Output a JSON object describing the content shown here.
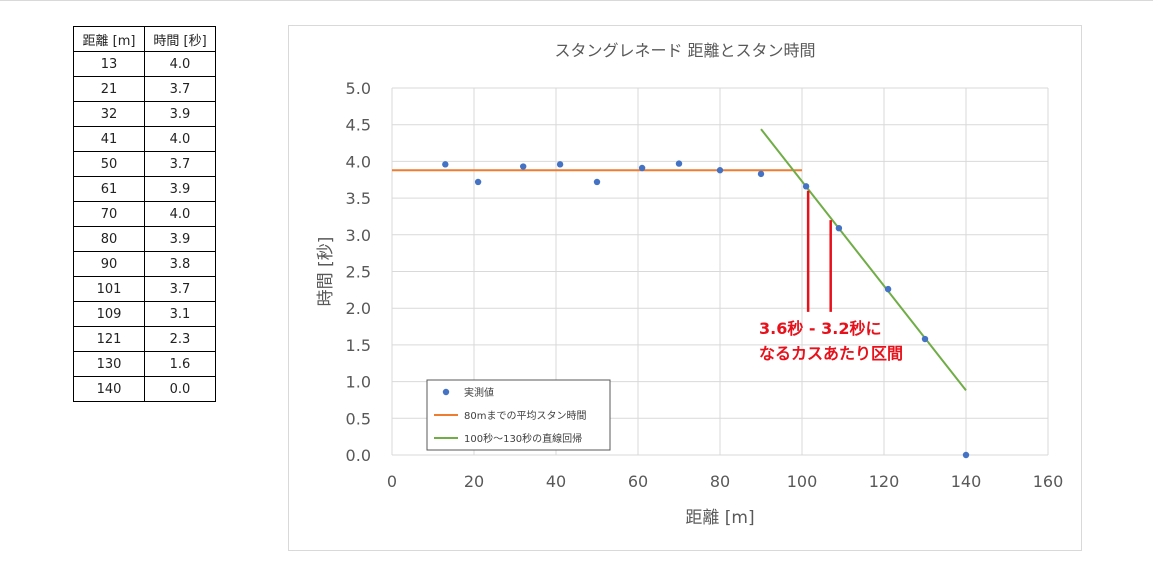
{
  "table": {
    "headers": [
      "距離 [m]",
      "時間 [秒]"
    ],
    "rows": [
      [
        "13",
        "4.0"
      ],
      [
        "21",
        "3.7"
      ],
      [
        "32",
        "3.9"
      ],
      [
        "41",
        "4.0"
      ],
      [
        "50",
        "3.7"
      ],
      [
        "61",
        "3.9"
      ],
      [
        "70",
        "4.0"
      ],
      [
        "80",
        "3.9"
      ],
      [
        "90",
        "3.8"
      ],
      [
        "101",
        "3.7"
      ],
      [
        "109",
        "3.1"
      ],
      [
        "121",
        "2.3"
      ],
      [
        "130",
        "1.6"
      ],
      [
        "140",
        "0.0"
      ]
    ]
  },
  "chart_data": {
    "type": "scatter",
    "title": "スタングレネード 距離とスタン時間",
    "xlabel": "距離 [m]",
    "ylabel": "時間 [秒]",
    "xlim": [
      0,
      160
    ],
    "ylim": [
      0,
      5.0
    ],
    "x_ticks": [
      "0",
      "20",
      "40",
      "60",
      "80",
      "100",
      "120",
      "140",
      "160"
    ],
    "y_ticks": [
      "0.0",
      "0.5",
      "1.0",
      "1.5",
      "2.0",
      "2.5",
      "3.0",
      "3.5",
      "4.0",
      "4.5",
      "5.0"
    ],
    "grid": true,
    "legend_position": "bottom-left",
    "series": [
      {
        "name": "実測値",
        "kind": "scatter",
        "color": "#4472c4",
        "points": [
          [
            13,
            3.96
          ],
          [
            21,
            3.72
          ],
          [
            32,
            3.93
          ],
          [
            41,
            3.96
          ],
          [
            50,
            3.72
          ],
          [
            61,
            3.91
          ],
          [
            70,
            3.97
          ],
          [
            80,
            3.88
          ],
          [
            90,
            3.83
          ],
          [
            101,
            3.66
          ],
          [
            109,
            3.09
          ],
          [
            121,
            2.26
          ],
          [
            130,
            1.58
          ],
          [
            140,
            0.0
          ]
        ]
      },
      {
        "name": "80mまでの平均スタン時間",
        "kind": "line",
        "color": "#ed7d31",
        "points": [
          [
            0,
            3.88
          ],
          [
            100,
            3.88
          ]
        ]
      },
      {
        "name": "100秒～130秒の直線回帰",
        "kind": "line",
        "color": "#70ad47",
        "points": [
          [
            90,
            4.44
          ],
          [
            140,
            0.88
          ]
        ]
      }
    ],
    "annotation": {
      "lines": [
        "3.6秒 - 3.2秒に",
        "なるカスあたり区間"
      ],
      "color": "#e8101a",
      "markers": [
        {
          "x": 101.5,
          "y_top": 3.6,
          "y_bottom": 1.95
        },
        {
          "x": 107.0,
          "y_top": 3.2,
          "y_bottom": 1.95
        }
      ]
    }
  }
}
